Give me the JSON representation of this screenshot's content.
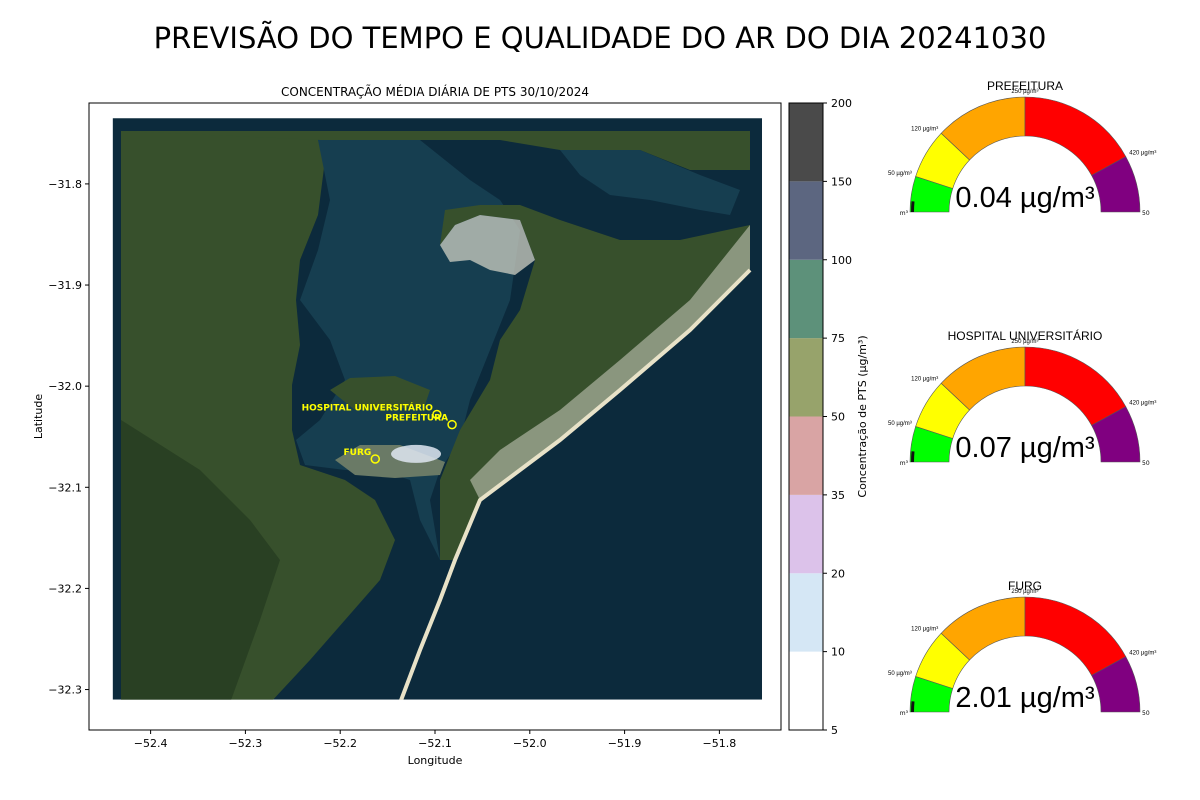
{
  "page_title": "PREVISÃO DO TEMPO E QUALIDADE DO AR DO DIA 20241030",
  "colors": {
    "water": "#0c2a3c",
    "water_bay": "#163e50",
    "land": "#37502c",
    "land_dark": "#24391f",
    "sand": "#cfd0c3",
    "marker": "#ffff00"
  },
  "chart_data": [
    {
      "type": "map",
      "title": "CONCENTRAÇÃO MÉDIA DIÁRIA DE PTS 30/10/2024",
      "xlabel": "Longitude",
      "ylabel": "Latitude",
      "xlim": [
        -52.465,
        -51.735
      ],
      "ylim": [
        -32.34,
        -31.72
      ],
      "xticks": [
        -52.4,
        -52.3,
        -52.2,
        -52.1,
        -52.0,
        -51.9,
        -51.8
      ],
      "xtick_labels": [
        "−52.4",
        "−52.3",
        "−52.2",
        "−52.1",
        "−52.0",
        "−51.9",
        "−51.8"
      ],
      "yticks": [
        -31.8,
        -31.9,
        -32.0,
        -32.1,
        -32.2,
        -32.3
      ],
      "ytick_labels": [
        "−31.8",
        "−31.9",
        "−32.0",
        "−32.1",
        "−32.2",
        "−32.3"
      ],
      "image_extent": {
        "lon_min": -52.44,
        "lon_max": -51.755,
        "lat_min": -32.31,
        "lat_max": -31.735
      },
      "stations": [
        {
          "name": "HOSPITAL UNIVERSITÁRIO",
          "lon": -52.098,
          "lat": -32.028
        },
        {
          "name": "PREFEITURA",
          "lon": -52.082,
          "lat": -32.038
        },
        {
          "name": "FURG",
          "lon": -52.163,
          "lat": -32.072
        }
      ],
      "pts_plume": {
        "lon": -52.12,
        "lat": -32.067,
        "concentration": 7
      },
      "colorbar": {
        "label": "Concentração de PTS (µg/m³)",
        "boundaries": [
          5,
          10,
          20,
          35,
          50,
          75,
          100,
          150,
          200
        ],
        "colors": [
          "#ffffff",
          "#d5e7f5",
          "#dcc2ea",
          "#d9a4a4",
          "#97a36b",
          "#5d917a",
          "#5c6680",
          "#4a4a4a"
        ]
      }
    },
    {
      "type": "gauge",
      "title": "PREFEITURA",
      "value": 0.04,
      "value_label": "0.04 µg/m³",
      "scale_max": 500,
      "band_limits": [
        0,
        50,
        120,
        250,
        420,
        500
      ],
      "band_colors": [
        "#00ff00",
        "#ffff00",
        "#ffa500",
        "#ff0000",
        "#800080"
      ],
      "threshold_labels": [
        "50 µg/m³",
        "120 µg/m³",
        "250 µg/m³",
        "420 µg/m³"
      ],
      "end_labels": [
        "m³",
        "50"
      ]
    },
    {
      "type": "gauge",
      "title": "HOSPITAL UNIVERSITÁRIO",
      "value": 0.07,
      "value_label": "0.07 µg/m³",
      "scale_max": 500,
      "band_limits": [
        0,
        50,
        120,
        250,
        420,
        500
      ],
      "band_colors": [
        "#00ff00",
        "#ffff00",
        "#ffa500",
        "#ff0000",
        "#800080"
      ],
      "threshold_labels": [
        "50 µg/m³",
        "120 µg/m³",
        "250 µg/m³",
        "420 µg/m³"
      ],
      "end_labels": [
        "m³",
        "50"
      ]
    },
    {
      "type": "gauge",
      "title": "FURG",
      "value": 2.01,
      "value_label": "2.01 µg/m³",
      "scale_max": 500,
      "band_limits": [
        0,
        50,
        120,
        250,
        420,
        500
      ],
      "band_colors": [
        "#00ff00",
        "#ffff00",
        "#ffa500",
        "#ff0000",
        "#800080"
      ],
      "threshold_labels": [
        "50 µg/m³",
        "120 µg/m³",
        "250 µg/m³",
        "420 µg/m³"
      ],
      "end_labels": [
        "m³",
        "50"
      ]
    }
  ]
}
